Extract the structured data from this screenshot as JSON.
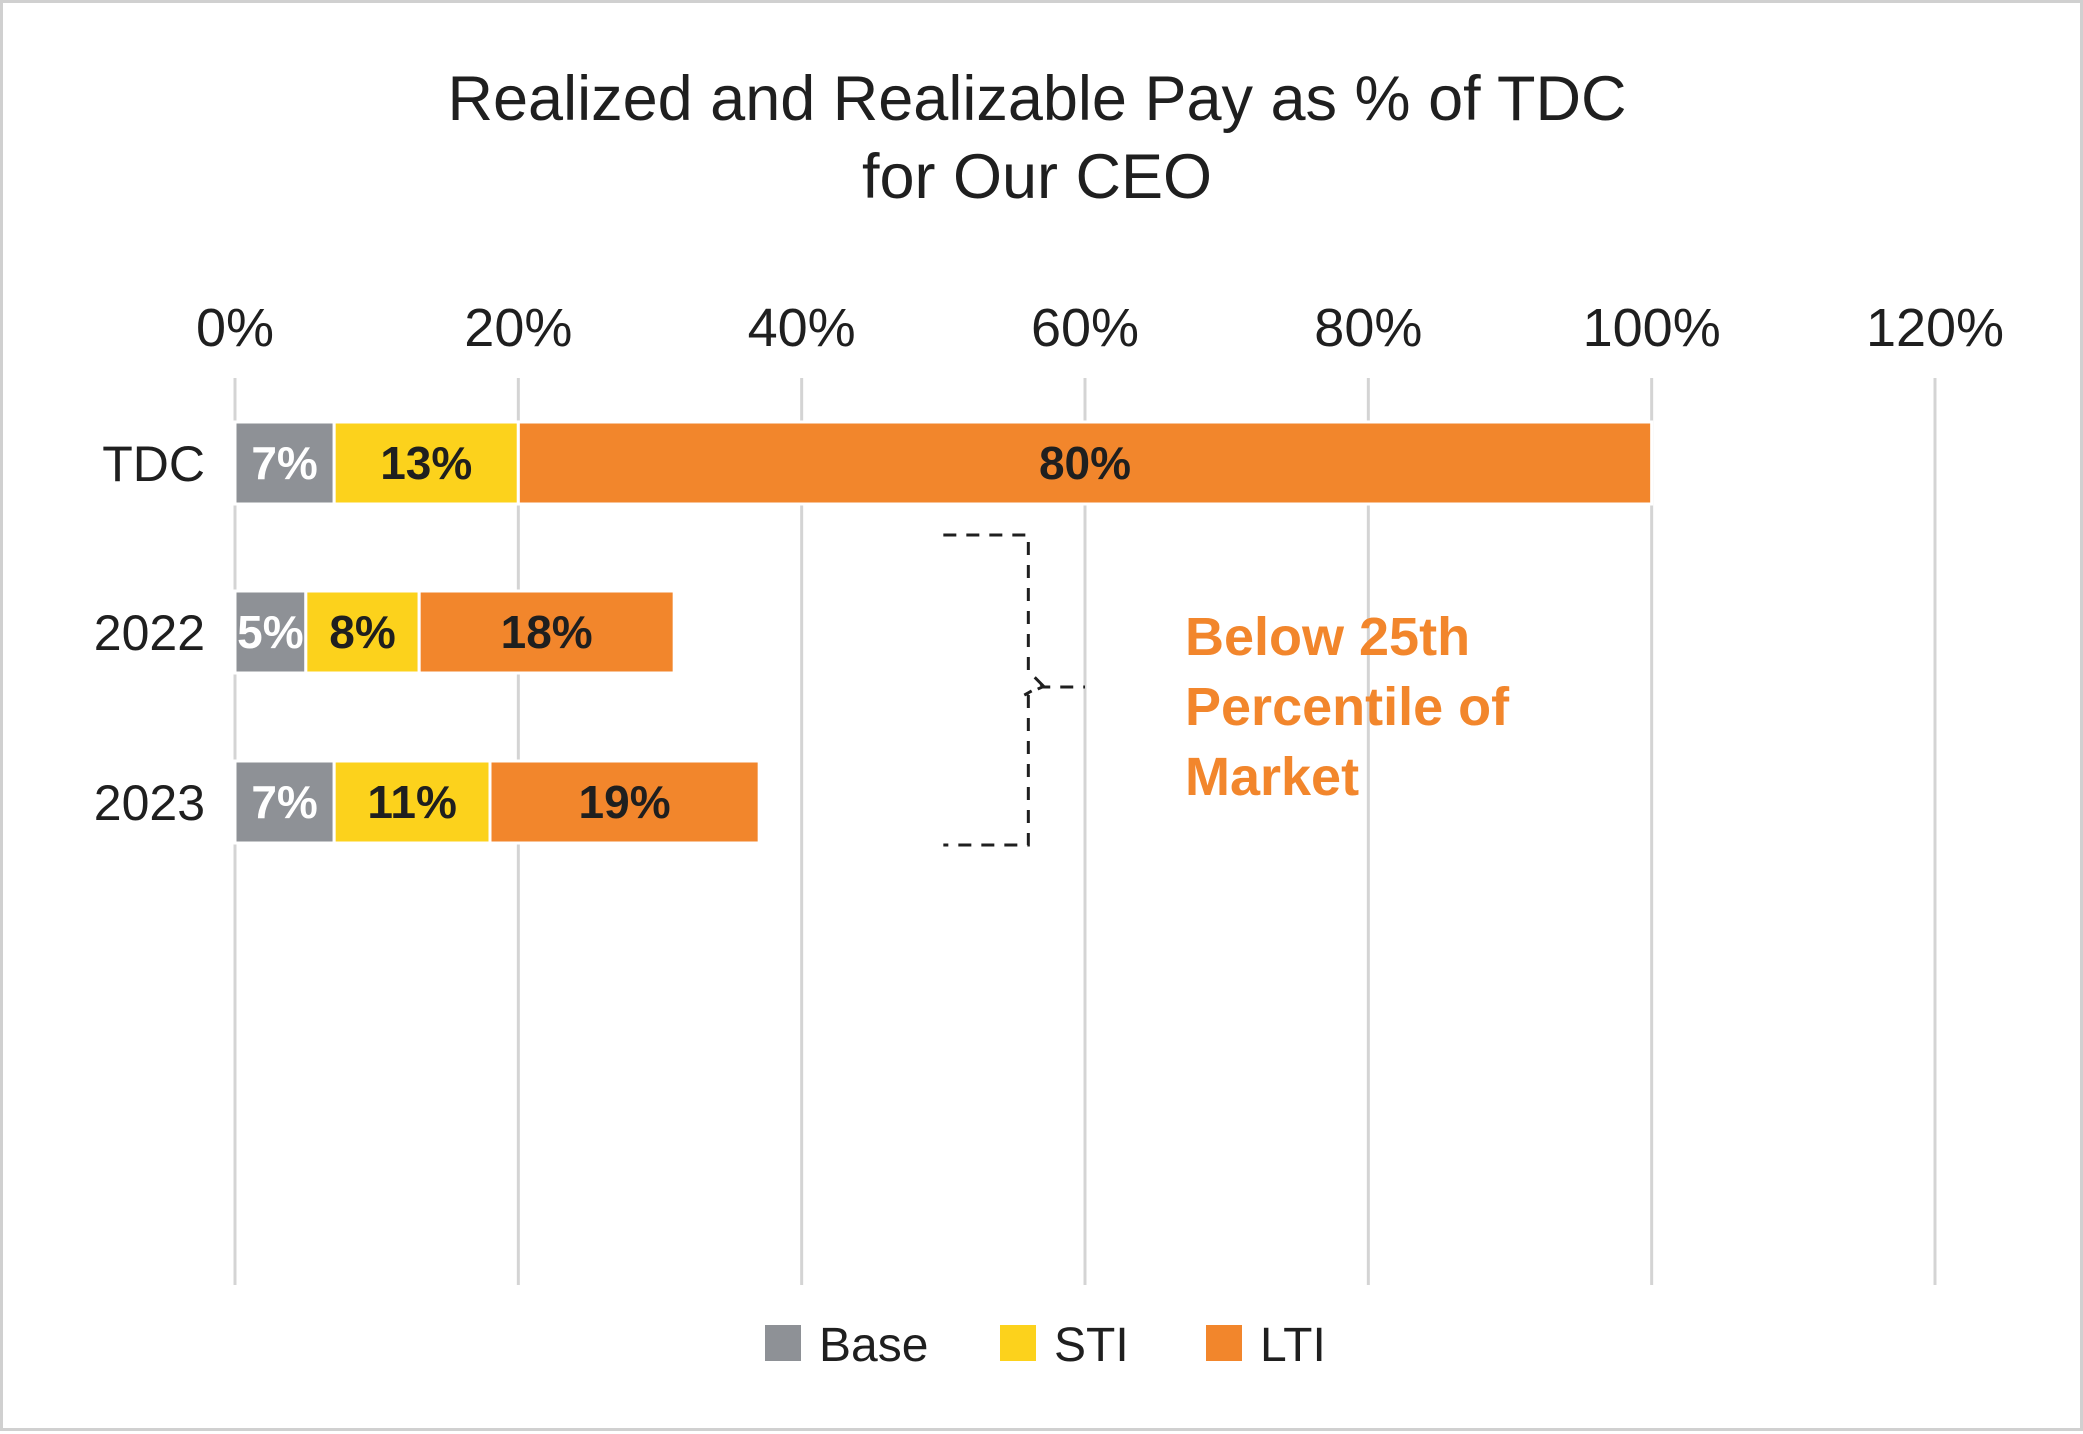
{
  "chart_data": {
    "type": "bar",
    "orientation": "horizontal",
    "stacked": true,
    "title": [
      "Realized and Realizable Pay as % of TDC",
      "for Our CEO"
    ],
    "xlabel": "",
    "ylabel": "",
    "xlim": [
      0,
      120
    ],
    "x_ticks": [
      0,
      20,
      40,
      60,
      80,
      100,
      120
    ],
    "x_tick_labels": [
      "0%",
      "20%",
      "40%",
      "60%",
      "80%",
      "100%",
      "120%"
    ],
    "x_axis_position": "top",
    "grid": true,
    "categories": [
      "TDC",
      "2022",
      "2023"
    ],
    "series": [
      {
        "name": "Base",
        "color": "#8e9196",
        "label_color": "#ffffff",
        "values": [
          7,
          5,
          7
        ],
        "labels": [
          "7%",
          "5%",
          "7%"
        ]
      },
      {
        "name": "STI",
        "color": "#fcd21c",
        "label_color": "#1f1f1f",
        "values": [
          13,
          8,
          11
        ],
        "labels": [
          "13%",
          "8%",
          "11%"
        ]
      },
      {
        "name": "LTI",
        "color": "#f2862c",
        "label_color": "#1f1f1f",
        "values": [
          80,
          18,
          19
        ],
        "labels": [
          "80%",
          "18%",
          "19%"
        ]
      }
    ],
    "legend": {
      "placement": "bottom-center",
      "entries": [
        "Base",
        "STI",
        "LTI"
      ]
    },
    "annotation": {
      "lines": [
        "Below 25th",
        "Percentile of",
        "Market"
      ],
      "color": "#f2862c",
      "applies_to": [
        "2022",
        "2023"
      ],
      "bracket_x_range": [
        50,
        60
      ]
    }
  }
}
